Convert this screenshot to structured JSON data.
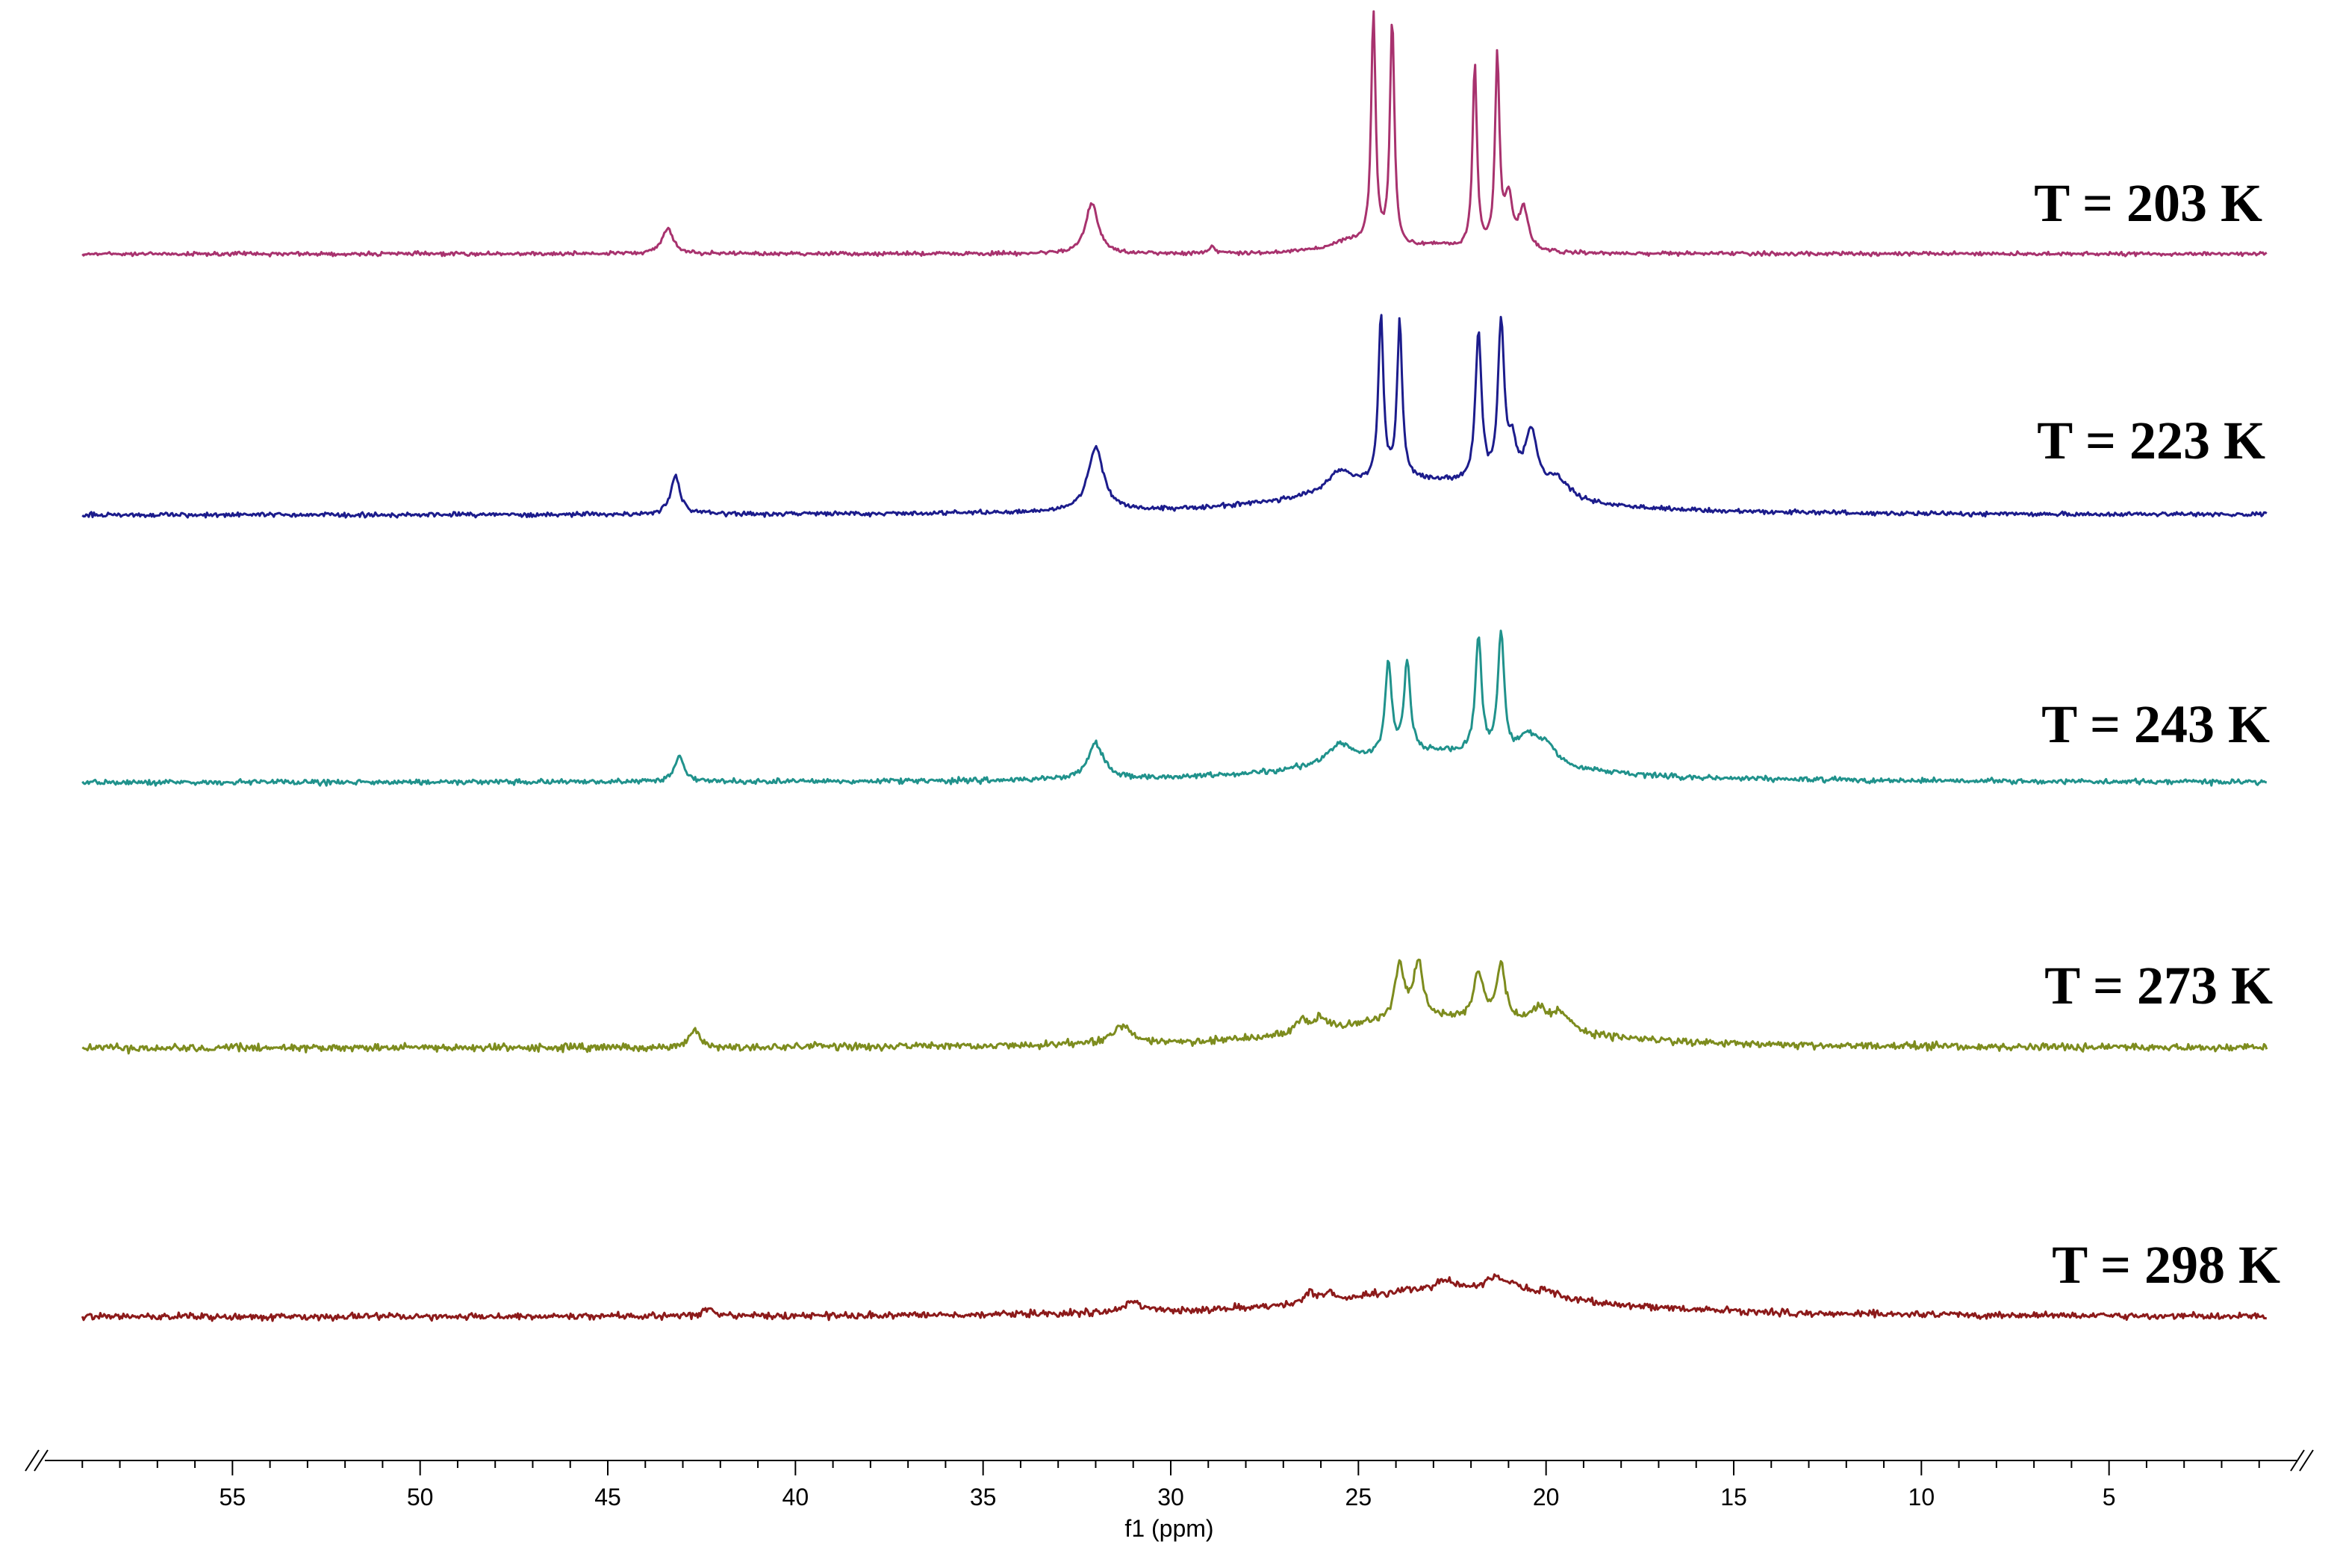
{
  "chart_data": {
    "type": "line",
    "xlabel": "f1 (ppm)",
    "x_reversed": true,
    "xlim": [
      60,
      0
    ],
    "x_ticks": [
      55,
      50,
      45,
      40,
      35,
      30,
      25,
      20,
      15,
      10,
      5
    ],
    "minor_tick_step": 1,
    "axis_break_marks": true,
    "yaxis_shown": false,
    "grid": false,
    "legend": "none",
    "series": [
      {
        "name": "T = 203 K",
        "color": "#a8326e",
        "peaks": [
          {
            "ppm": 43.4,
            "height": 0.11,
            "width": 0.18
          },
          {
            "ppm": 32.1,
            "height": 0.22,
            "width": 0.2
          },
          {
            "ppm": 28.9,
            "height": 0.03,
            "width": 0.1
          },
          {
            "ppm": 25.2,
            "height": 0.05,
            "width": 0.7
          },
          {
            "ppm": 24.6,
            "height": 1.0,
            "width": 0.07
          },
          {
            "ppm": 24.1,
            "height": 0.98,
            "width": 0.07
          },
          {
            "ppm": 23.0,
            "height": 0.03,
            "width": 0.8
          },
          {
            "ppm": 21.9,
            "height": 0.8,
            "width": 0.07
          },
          {
            "ppm": 21.3,
            "height": 0.83,
            "width": 0.07
          },
          {
            "ppm": 21.0,
            "height": 0.22,
            "width": 0.12
          },
          {
            "ppm": 20.6,
            "height": 0.18,
            "width": 0.15
          }
        ]
      },
      {
        "name": "T = 223 K",
        "color": "#1c1c8c",
        "peaks": [
          {
            "ppm": 43.2,
            "height": 0.19,
            "width": 0.15
          },
          {
            "ppm": 32.0,
            "height": 0.32,
            "width": 0.25
          },
          {
            "ppm": 23.5,
            "height": 0.17,
            "width": 3.0
          },
          {
            "ppm": 25.5,
            "height": 0.1,
            "width": 0.4
          },
          {
            "ppm": 24.4,
            "height": 0.82,
            "width": 0.08
          },
          {
            "ppm": 23.9,
            "height": 0.78,
            "width": 0.08
          },
          {
            "ppm": 21.8,
            "height": 0.75,
            "width": 0.1
          },
          {
            "ppm": 21.2,
            "height": 0.8,
            "width": 0.1
          },
          {
            "ppm": 20.9,
            "height": 0.2,
            "width": 0.15
          },
          {
            "ppm": 20.4,
            "height": 0.3,
            "width": 0.2
          },
          {
            "ppm": 19.7,
            "height": 0.1,
            "width": 0.4
          }
        ]
      },
      {
        "name": "T = 243 K",
        "color": "#20928c",
        "peaks": [
          {
            "ppm": 43.1,
            "height": 0.16,
            "width": 0.15
          },
          {
            "ppm": 32.0,
            "height": 0.22,
            "width": 0.25
          },
          {
            "ppm": 23.0,
            "height": 0.18,
            "width": 3.2
          },
          {
            "ppm": 25.5,
            "height": 0.12,
            "width": 0.4
          },
          {
            "ppm": 24.2,
            "height": 0.55,
            "width": 0.1
          },
          {
            "ppm": 23.7,
            "height": 0.55,
            "width": 0.1
          },
          {
            "ppm": 21.8,
            "height": 0.7,
            "width": 0.1
          },
          {
            "ppm": 21.2,
            "height": 0.75,
            "width": 0.1
          },
          {
            "ppm": 20.5,
            "height": 0.15,
            "width": 0.3
          },
          {
            "ppm": 20.0,
            "height": 0.12,
            "width": 0.3
          }
        ]
      },
      {
        "name": "T = 273 K",
        "color": "#7d8c1e",
        "peaks": [
          {
            "ppm": 42.7,
            "height": 0.13,
            "width": 0.15
          },
          {
            "ppm": 31.3,
            "height": 0.14,
            "width": 0.3
          },
          {
            "ppm": 23.0,
            "height": 0.22,
            "width": 3.5
          },
          {
            "ppm": 26.5,
            "height": 0.1,
            "width": 0.2
          },
          {
            "ppm": 26.0,
            "height": 0.1,
            "width": 0.2
          },
          {
            "ppm": 23.9,
            "height": 0.4,
            "width": 0.15
          },
          {
            "ppm": 23.4,
            "height": 0.4,
            "width": 0.15
          },
          {
            "ppm": 21.8,
            "height": 0.35,
            "width": 0.15
          },
          {
            "ppm": 21.2,
            "height": 0.42,
            "width": 0.15
          },
          {
            "ppm": 20.2,
            "height": 0.15,
            "width": 0.3
          },
          {
            "ppm": 19.6,
            "height": 0.12,
            "width": 0.3
          }
        ]
      },
      {
        "name": "T = 298 K",
        "color": "#8c1a1a",
        "peaks": [
          {
            "ppm": 42.3,
            "height": 0.08,
            "width": 0.15
          },
          {
            "ppm": 31.0,
            "height": 0.1,
            "width": 0.3
          },
          {
            "ppm": 22.5,
            "height": 0.28,
            "width": 3.8
          },
          {
            "ppm": 26.3,
            "height": 0.1,
            "width": 0.15
          },
          {
            "ppm": 25.8,
            "height": 0.08,
            "width": 0.15
          },
          {
            "ppm": 22.7,
            "height": 0.08,
            "width": 0.2
          },
          {
            "ppm": 21.4,
            "height": 0.1,
            "width": 0.25
          },
          {
            "ppm": 20.9,
            "height": 0.08,
            "width": 0.25
          },
          {
            "ppm": 20.0,
            "height": 0.06,
            "width": 0.3
          }
        ]
      }
    ]
  }
}
